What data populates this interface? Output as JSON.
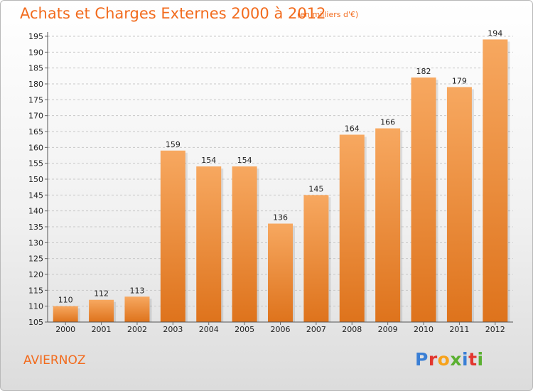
{
  "header": {
    "title": "Achats et Charges Externes 2000 à 2012",
    "subtitle": "(en milliers d'€)"
  },
  "footer": {
    "commune": "AVIERNOZ",
    "logo_letters": [
      "P",
      "r",
      "o",
      "x",
      "i",
      "t",
      "i"
    ]
  },
  "colors": {
    "accent": "#f26b1d",
    "bar_top": "#f7a860",
    "bar_bottom": "#de731c",
    "logo": [
      "#3a7fd5",
      "#e2362e",
      "#f7a21b",
      "#5bb031",
      "#3a7fd5",
      "#e2362e",
      "#5bb031"
    ]
  },
  "chart_data": {
    "type": "bar",
    "title": "Achats et Charges Externes 2000 à 2012",
    "subtitle": "(en milliers d'€)",
    "categories": [
      "2000",
      "2001",
      "2002",
      "2003",
      "2004",
      "2005",
      "2006",
      "2007",
      "2008",
      "2009",
      "2010",
      "2011",
      "2012"
    ],
    "values": [
      110,
      112,
      113,
      159,
      154,
      154,
      136,
      145,
      164,
      166,
      182,
      179,
      194
    ],
    "ylim": [
      105,
      195
    ],
    "yticks": [
      105,
      110,
      115,
      120,
      125,
      130,
      135,
      140,
      145,
      150,
      155,
      160,
      165,
      170,
      175,
      180,
      185,
      190,
      195
    ],
    "grid": "horizontal dashed",
    "data_labels": true
  }
}
